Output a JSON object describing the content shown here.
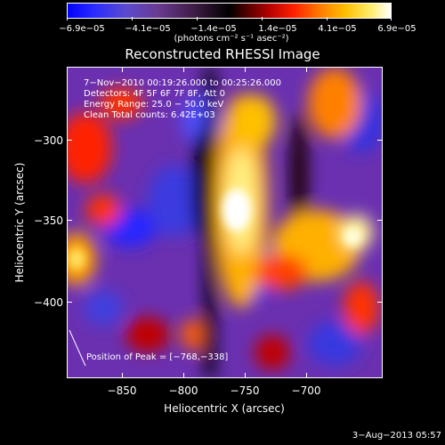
{
  "colorbar": {
    "tick_labels": [
      "−6.9e−05",
      "−4.1e−05",
      "−1.4e−05",
      "1.4e−05",
      "4.1e−05",
      "6.9e−05"
    ],
    "units": "(photons cm⁻² s⁻¹ asec⁻²)",
    "range": [
      -6.9e-05,
      6.9e-05
    ]
  },
  "title": "Reconstructed RHESSI Image",
  "info": {
    "time": "7−Nov−2010 00:19:26.000 to 00:25:26.000",
    "detectors": "Detectors: 4F 5F 6F 7F 8F, Att 0",
    "energy": "Energy Range: 25.0 − 50.0 keV",
    "clean": "Clean     Total counts: 6.42E+03"
  },
  "peak_label": "Position of Peak = [−768,−338]",
  "x_axis": {
    "label": "Heliocentric X (arcsec)",
    "ticks": [
      "−850",
      "−800",
      "−750",
      "−700"
    ],
    "range": [
      -872,
      -678
    ]
  },
  "y_axis": {
    "label": "Heliocentric Y (arcsec)",
    "ticks": [
      "−300",
      "−350",
      "−400"
    ],
    "range": [
      -448,
      -258
    ]
  },
  "date_stamp": "3−Aug−2013 05:57"
}
